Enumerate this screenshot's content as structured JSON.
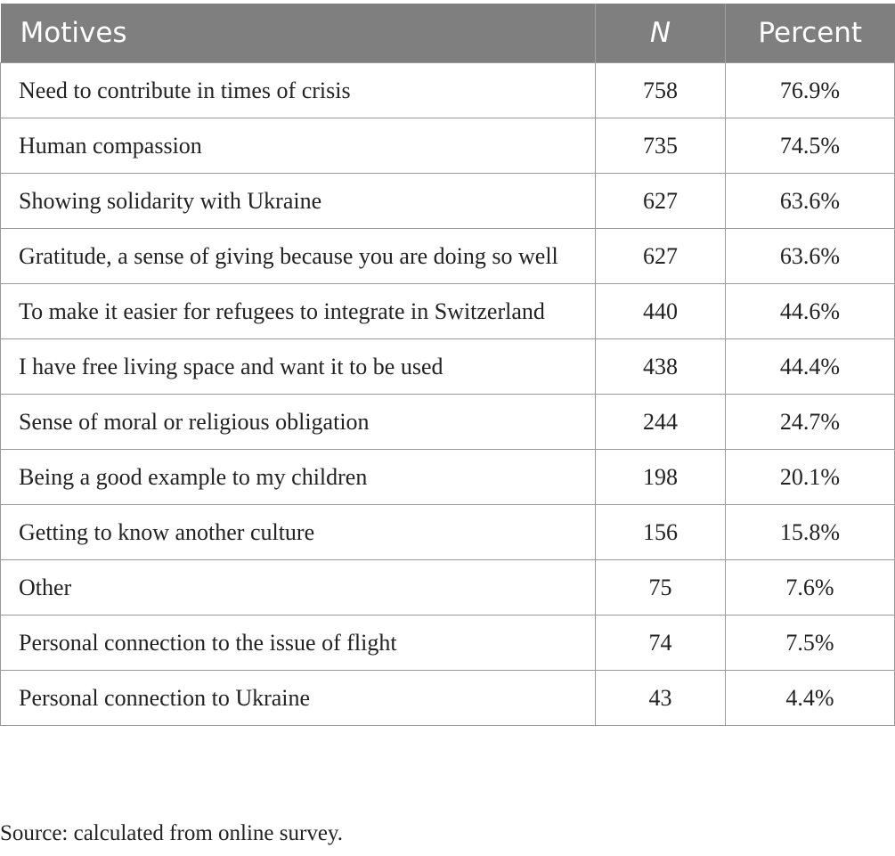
{
  "table": {
    "headers": [
      "Motives",
      "N",
      "Percent"
    ],
    "rows": [
      [
        "Need to contribute in times of crisis",
        "758",
        "76.9%"
      ],
      [
        "Human compassion",
        "735",
        "74.5%"
      ],
      [
        "Showing solidarity with Ukraine",
        "627",
        "63.6%"
      ],
      [
        "Gratitude, a sense of giving because you are doing so well",
        "627",
        "63.6%"
      ],
      [
        "To make it easier for refugees to integrate in Switzerland",
        "440",
        "44.6%"
      ],
      [
        "I have free living space and want it to be used",
        "438",
        "44.4%"
      ],
      [
        "Sense of moral or religious obligation",
        "244",
        "24.7%"
      ],
      [
        "Being a good example to my children",
        "198",
        "20.1%"
      ],
      [
        "Getting to know another culture",
        "156",
        "15.8%"
      ],
      [
        "Other",
        "75",
        "7.6%"
      ],
      [
        "Personal connection to the issue of flight",
        "74",
        "7.5%"
      ],
      [
        "Personal connection to Ukraine",
        "43",
        "4.4%"
      ]
    ]
  },
  "footer": "Source: calculated from online survey."
}
